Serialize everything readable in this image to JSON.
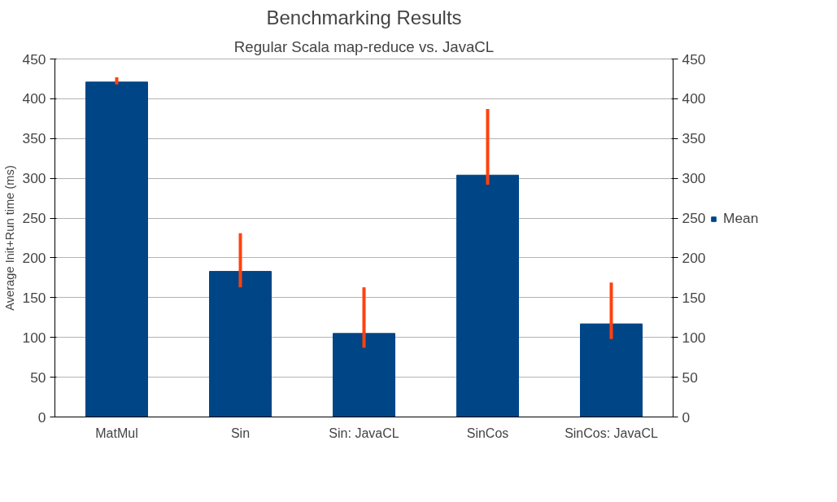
{
  "chart_data": {
    "type": "bar",
    "title": "Benchmarking Results",
    "subtitle": "Regular Scala map-reduce vs. JavaCL",
    "ylabel": "Average Init+Run time (ms)",
    "categories": [
      "MatMul",
      "Sin",
      "Sin: JavaCL",
      "SinCos",
      "SinCos: JavaCL"
    ],
    "series": [
      {
        "name": "Mean",
        "color": "#004586",
        "values": [
          421,
          183,
          105,
          304,
          117
        ],
        "errors": [
          [
            418,
            427
          ],
          [
            163,
            231
          ],
          [
            87,
            163
          ],
          [
            292,
            387
          ],
          [
            98,
            169
          ]
        ]
      }
    ],
    "ylim": [
      0,
      450
    ],
    "yticks": [
      0,
      50,
      100,
      150,
      200,
      250,
      300,
      350,
      400,
      450
    ],
    "y2lim": [
      0,
      450
    ],
    "y2ticks": [
      0,
      50,
      100,
      150,
      200,
      250,
      300,
      350,
      400,
      450
    ],
    "grid": "y",
    "legend": "right"
  }
}
